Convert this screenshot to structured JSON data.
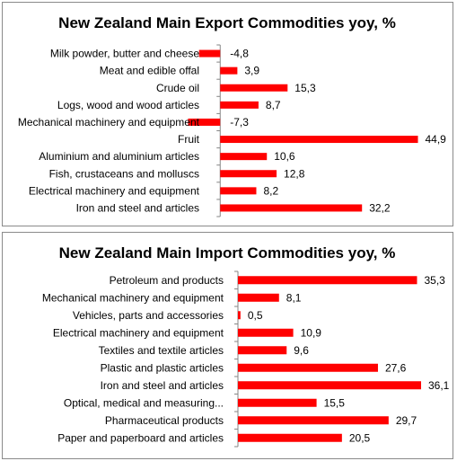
{
  "chart_data": [
    {
      "type": "bar",
      "orientation": "horizontal",
      "title": "New Zealand Main Export Commodities yoy, %",
      "categories": [
        "Milk powder, butter and cheese",
        "Meat and edible offal",
        "Crude oil",
        "Logs, wood and wood articles",
        "Mechanical machinery and equipment",
        "Fruit",
        "Aluminium and aluminium articles",
        "Fish, crustaceans and molluscs",
        "Electrical machinery and equipment",
        "Iron and steel and articles"
      ],
      "values": [
        -4.8,
        3.9,
        15.3,
        8.7,
        -7.3,
        44.9,
        10.6,
        12.8,
        8.2,
        32.2
      ],
      "value_labels": [
        "-4,8",
        "3,9",
        "15,3",
        "8,7",
        "-7,3",
        "44,9",
        "10,6",
        "12,8",
        "8,2",
        "32,2"
      ],
      "color": "#ff0000",
      "xlim": [
        -8,
        45
      ],
      "grid": false,
      "legend": "none"
    },
    {
      "type": "bar",
      "orientation": "horizontal",
      "title": "New Zealand Main Import Commodities yoy, %",
      "categories": [
        "Petroleum and products",
        "Mechanical machinery and equipment",
        "Vehicles, parts and accessories",
        "Electrical machinery and equipment",
        "Textiles and textile articles",
        "Plastic and plastic articles",
        "Iron and steel and articles",
        "Optical, medical and measuring...",
        "Pharmaceutical products",
        "Paper and paperboard and articles"
      ],
      "values": [
        35.3,
        8.1,
        0.5,
        10.9,
        9.6,
        27.6,
        36.1,
        15.5,
        29.7,
        20.5
      ],
      "value_labels": [
        "35,3",
        "8,1",
        "0,5",
        "10,9",
        "9,6",
        "27,6",
        "36,1",
        "15,5",
        "29,7",
        "20,5"
      ],
      "color": "#ff0000",
      "xlim": [
        0,
        36.1
      ],
      "grid": false,
      "legend": "none"
    }
  ]
}
